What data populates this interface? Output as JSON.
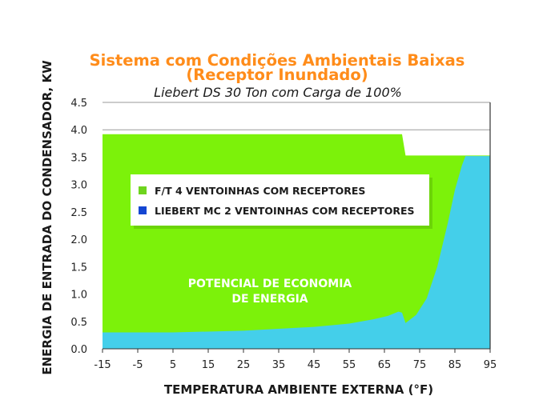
{
  "colors": {
    "title": "#FF8C1A",
    "green": "#7CF20A",
    "blue": "#44CFEA",
    "legend_green_marker": "#6ED41E",
    "legend_blue_marker": "#1446D2",
    "grid": "#9a9a9a",
    "annotation_text": "#ffffff"
  },
  "chart_data": {
    "type": "area",
    "title": "Sistema com Condições Ambientais Baixas",
    "title_line2": "(Receptor Inundado)",
    "subtitle": "Liebert DS 30 Ton com Carga de 100%",
    "xlabel": "TEMPERATURA AMBIENTE EXTERNA (°F)",
    "ylabel": "ENERGIA DE ENTRADA DO CONDENSADOR, KW",
    "xlim": [
      -15,
      95
    ],
    "ylim": [
      0,
      4.5
    ],
    "x_ticks": [
      "-15",
      "-5",
      "5",
      "15",
      "25",
      "35",
      "45",
      "55",
      "65",
      "75",
      "85",
      "95"
    ],
    "y_ticks": [
      "0.0",
      "0.5",
      "1.0",
      "1.5",
      "2.0",
      "2.5",
      "3.0",
      "3.5",
      "4.0",
      "4.5"
    ],
    "grid": "horizontal",
    "legend_position": "center-left",
    "series": [
      {
        "name": "F/T 4 VENTOINHAS COM RECEPTORES",
        "x": [
          -15,
          70,
          71,
          95
        ],
        "y": [
          3.92,
          3.92,
          3.53,
          3.53
        ]
      },
      {
        "name": "LIEBERT MC 2 VENTOINHAS COM RECEPTORES",
        "x": [
          -15,
          5,
          25,
          45,
          55,
          62,
          66,
          69,
          70,
          71,
          74,
          77,
          80,
          83,
          85,
          87,
          88,
          95
        ],
        "y": [
          0.3,
          0.3,
          0.33,
          0.4,
          0.46,
          0.54,
          0.6,
          0.68,
          0.66,
          0.47,
          0.62,
          0.92,
          1.5,
          2.3,
          2.9,
          3.35,
          3.52,
          3.52
        ]
      }
    ],
    "annotation": {
      "line1": "POTENCIAL DE ECONOMIA",
      "line2": "DE ENERGIA"
    }
  }
}
